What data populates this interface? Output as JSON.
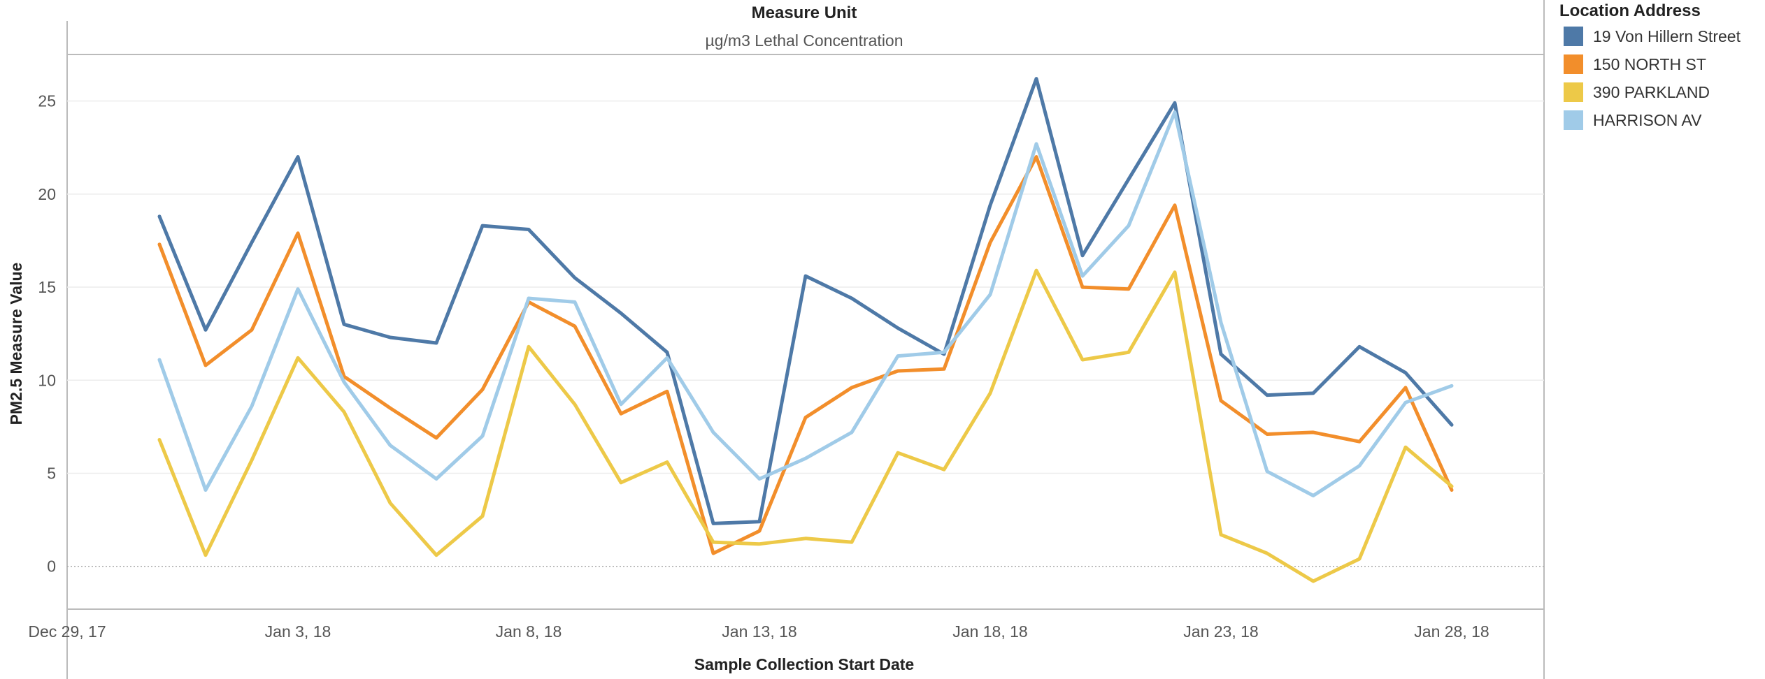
{
  "chart_data": {
    "type": "line",
    "header": {
      "title": "Measure Unit",
      "subtitle": "µg/m3 Lethal Concentration"
    },
    "xlabel": "Sample Collection Start Date",
    "ylabel": "PM2.5 Measure Value",
    "ylim": [
      -2.3,
      27.5
    ],
    "yticks": [
      0,
      5,
      10,
      15,
      20,
      25
    ],
    "x_range": [
      "2017-12-29",
      "2018-01-30"
    ],
    "xticks": [
      {
        "date": "2017-12-29",
        "label": "Dec 29, 17"
      },
      {
        "date": "2018-01-03",
        "label": "Jan 3, 18"
      },
      {
        "date": "2018-01-08",
        "label": "Jan 8, 18"
      },
      {
        "date": "2018-01-13",
        "label": "Jan 13, 18"
      },
      {
        "date": "2018-01-18",
        "label": "Jan 18, 18"
      },
      {
        "date": "2018-01-23",
        "label": "Jan 23, 18"
      },
      {
        "date": "2018-01-28",
        "label": "Jan 28, 18"
      }
    ],
    "grid": true,
    "legend_position": "right",
    "x": [
      "2017-12-31",
      "2018-01-01",
      "2018-01-02",
      "2018-01-03",
      "2018-01-04",
      "2018-01-05",
      "2018-01-06",
      "2018-01-07",
      "2018-01-08",
      "2018-01-09",
      "2018-01-10",
      "2018-01-11",
      "2018-01-12",
      "2018-01-13",
      "2018-01-14",
      "2018-01-15",
      "2018-01-16",
      "2018-01-17",
      "2018-01-18",
      "2018-01-19",
      "2018-01-20",
      "2018-01-21",
      "2018-01-22",
      "2018-01-23",
      "2018-01-24",
      "2018-01-25",
      "2018-01-26",
      "2018-01-27",
      "2018-01-28"
    ],
    "series": [
      {
        "name": "19 Von Hillern Street",
        "color": "#4e79a7",
        "values": [
          18.8,
          12.7,
          17.4,
          22.0,
          13.0,
          12.3,
          12.0,
          18.3,
          18.1,
          15.5,
          13.6,
          11.5,
          2.3,
          2.4,
          15.6,
          14.4,
          12.8,
          11.4,
          19.4,
          26.2,
          16.7,
          20.8,
          24.9,
          11.4,
          9.2,
          9.3,
          11.8,
          10.4,
          7.6
        ]
      },
      {
        "name": "150 NORTH ST",
        "color": "#f28e2b",
        "values": [
          17.3,
          10.8,
          12.7,
          17.9,
          10.2,
          8.5,
          6.9,
          9.5,
          14.2,
          12.9,
          8.2,
          9.4,
          0.7,
          1.9,
          8.0,
          9.6,
          10.5,
          10.6,
          17.4,
          22.0,
          15.0,
          14.9,
          19.4,
          8.9,
          7.1,
          7.2,
          6.7,
          9.6,
          4.1
        ]
      },
      {
        "name": "390 PARKLAND",
        "color": "#edc948",
        "values": [
          6.8,
          0.6,
          5.7,
          11.2,
          8.3,
          3.4,
          0.6,
          2.7,
          11.8,
          8.7,
          4.5,
          5.6,
          1.3,
          1.2,
          1.5,
          1.3,
          6.1,
          5.2,
          9.3,
          15.9,
          11.1,
          11.5,
          15.8,
          1.7,
          0.7,
          -0.8,
          0.4,
          6.4,
          4.3
        ]
      },
      {
        "name": "HARRISON AV",
        "color": "#a0cbe8",
        "values": [
          11.1,
          4.1,
          8.6,
          14.9,
          9.9,
          6.5,
          4.7,
          7.0,
          14.4,
          14.2,
          8.7,
          11.2,
          7.2,
          4.7,
          5.8,
          7.2,
          11.3,
          11.5,
          14.6,
          22.7,
          15.6,
          18.3,
          24.4,
          13.1,
          5.1,
          3.8,
          5.4,
          8.8,
          9.7
        ]
      }
    ]
  },
  "legend": {
    "title": "Location Address"
  }
}
